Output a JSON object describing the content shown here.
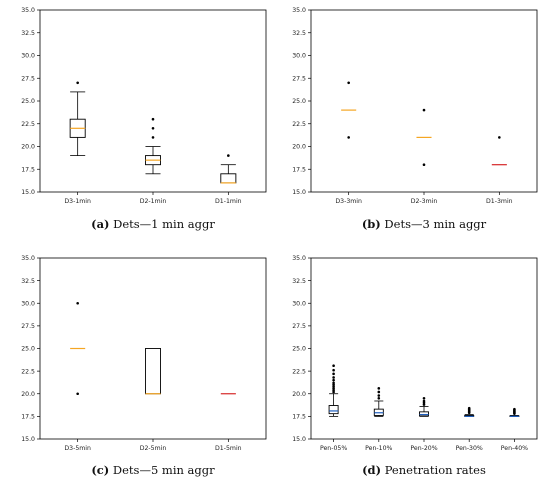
{
  "chart_data": [
    {
      "type": "box",
      "caption_label": "(a)",
      "caption_text": "Dets—1 min aggr",
      "ylim": [
        15.0,
        35.0
      ],
      "yticks": [
        "15.0",
        "17.5",
        "20.0",
        "22.5",
        "25.0",
        "27.5",
        "30.0",
        "32.5",
        "35.0"
      ],
      "categories": [
        "D3-1min",
        "D2-1min",
        "D1-1min"
      ],
      "boxes": [
        {
          "whisker_low": 19.0,
          "q1": 21.0,
          "median": 22.0,
          "q3": 23.0,
          "whisker_high": 26.0,
          "outliers": [
            27.0
          ],
          "median_color": "#f5a623"
        },
        {
          "whisker_low": 17.0,
          "q1": 18.0,
          "median": 18.5,
          "q3": 19.0,
          "whisker_high": 20.0,
          "outliers": [
            21.0,
            22.0,
            23.0
          ],
          "median_color": "#f5a623"
        },
        {
          "whisker_low": 16.0,
          "q1": 16.0,
          "median": 16.0,
          "q3": 17.0,
          "whisker_high": 18.0,
          "outliers": [
            19.0
          ],
          "median_color": "#f5a623"
        }
      ]
    },
    {
      "type": "box",
      "caption_label": "(b)",
      "caption_text": "Dets—3 min aggr",
      "ylim": [
        15.0,
        35.0
      ],
      "yticks": [
        "15.0",
        "17.5",
        "20.0",
        "22.5",
        "25.0",
        "27.5",
        "30.0",
        "32.5",
        "35.0"
      ],
      "categories": [
        "D3-3min",
        "D2-3min",
        "D1-3min"
      ],
      "boxes": [
        {
          "whisker_low": 24.0,
          "q1": 24.0,
          "median": 24.0,
          "q3": 24.0,
          "whisker_high": 24.0,
          "outliers": [
            21.0,
            27.0
          ],
          "median_color": "#f5a623"
        },
        {
          "whisker_low": 21.0,
          "q1": 21.0,
          "median": 21.0,
          "q3": 21.0,
          "whisker_high": 21.0,
          "outliers": [
            18.0,
            24.0
          ],
          "median_color": "#f5a623"
        },
        {
          "whisker_low": 18.0,
          "q1": 18.0,
          "median": 18.0,
          "q3": 18.0,
          "whisker_high": 18.0,
          "outliers": [
            21.0
          ],
          "median_color": "#d62728"
        }
      ]
    },
    {
      "type": "box",
      "caption_label": "(c)",
      "caption_text": "Dets—5 min aggr",
      "ylim": [
        15.0,
        35.0
      ],
      "yticks": [
        "15.0",
        "17.5",
        "20.0",
        "22.5",
        "25.0",
        "27.5",
        "30.0",
        "32.5",
        "35.0"
      ],
      "categories": [
        "D3-5min",
        "D2-5min",
        "D1-5min"
      ],
      "boxes": [
        {
          "whisker_low": 25.0,
          "q1": 25.0,
          "median": 25.0,
          "q3": 25.0,
          "whisker_high": 25.0,
          "outliers": [
            20.0,
            30.0
          ],
          "median_color": "#f5a623"
        },
        {
          "whisker_low": 20.0,
          "q1": 20.0,
          "median": 20.0,
          "q3": 25.0,
          "whisker_high": 25.0,
          "outliers": [],
          "median_color": "#f5a623"
        },
        {
          "whisker_low": 20.0,
          "q1": 20.0,
          "median": 20.0,
          "q3": 20.0,
          "whisker_high": 20.0,
          "outliers": [],
          "median_color": "#d62728"
        }
      ]
    },
    {
      "type": "box",
      "caption_label": "(d)",
      "caption_text": "Penetration rates",
      "ylim": [
        15.0,
        35.0
      ],
      "yticks": [
        "15.0",
        "17.5",
        "20.0",
        "22.5",
        "25.0",
        "27.5",
        "30.0",
        "32.5",
        "35.0"
      ],
      "categories": [
        "Pen-05%",
        "Pen-10%",
        "Pen-20%",
        "Pen-30%",
        "Pen-40%"
      ],
      "boxes": [
        {
          "whisker_low": 17.5,
          "q1": 17.8,
          "median": 18.1,
          "q3": 18.7,
          "whisker_high": 20.0,
          "outliers": [
            20.2,
            20.4,
            20.6,
            20.8,
            21.0,
            21.2,
            21.5,
            21.8,
            22.2,
            22.6,
            23.1
          ],
          "median_color": "#1f5fbf"
        },
        {
          "whisker_low": 17.5,
          "q1": 17.6,
          "median": 17.9,
          "q3": 18.3,
          "whisker_high": 19.2,
          "outliers": [
            19.5,
            19.8,
            20.2,
            20.6
          ],
          "median_color": "#1f5fbf"
        },
        {
          "whisker_low": 17.5,
          "q1": 17.55,
          "median": 17.7,
          "q3": 18.0,
          "whisker_high": 18.6,
          "outliers": [
            18.8,
            19.0,
            19.2,
            19.5
          ],
          "median_color": "#1f5fbf"
        },
        {
          "whisker_low": 17.5,
          "q1": 17.5,
          "median": 17.5,
          "q3": 17.6,
          "whisker_high": 17.7,
          "outliers": [
            17.9,
            18.0,
            18.1,
            18.2,
            18.3,
            18.4
          ],
          "median_color": "#1f5fbf"
        },
        {
          "whisker_low": 17.5,
          "q1": 17.5,
          "median": 17.5,
          "q3": 17.55,
          "whisker_high": 17.6,
          "outliers": [
            17.8,
            17.9,
            18.0,
            18.1,
            18.2,
            18.3
          ],
          "median_color": "#1f5fbf"
        }
      ]
    }
  ]
}
